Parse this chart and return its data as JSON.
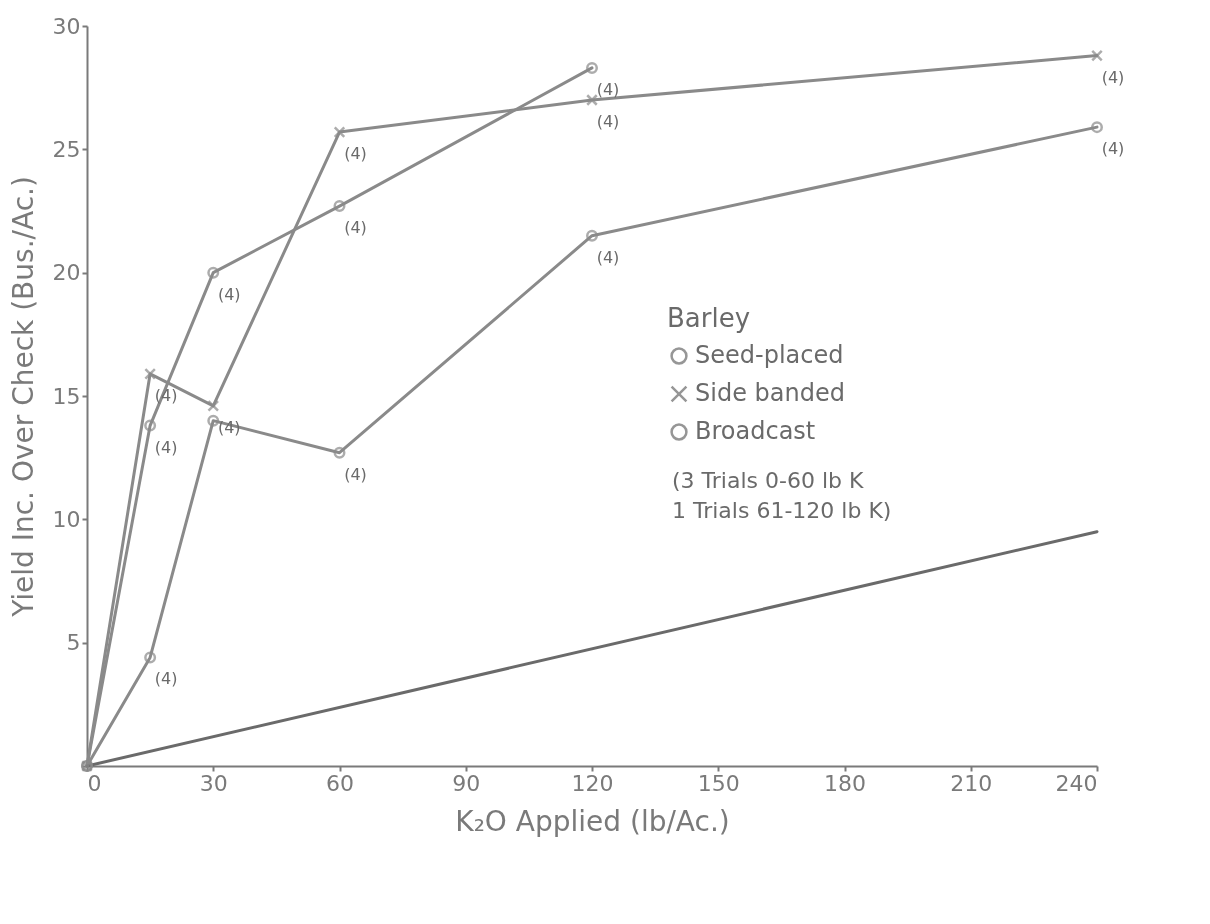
{
  "chart_data": {
    "type": "line",
    "xlabel": "K₂O Applied (lb/Ac.)",
    "ylabel": "Yield Inc. Over Check (Bus./Ac.)",
    "legend_title": "Barley",
    "legend": "right",
    "grid": false,
    "line_style": "solid",
    "xlim": [
      0,
      240
    ],
    "xticks": [
      0,
      30,
      60,
      90,
      120,
      150,
      180,
      210,
      240
    ],
    "ylim": [
      0,
      30
    ],
    "yticks": [
      {
        "value": 0,
        "label": null
      },
      5,
      10,
      15,
      20,
      25,
      30
    ],
    "annotations": [
      "(3 Trials 0-60 lb K",
      " 1 Trials 61-120 lb K)",
      {
        "text": "(4)",
        "x": 15,
        "y": 13.8
      },
      {
        "text": "(4)",
        "x": 30,
        "y": 20.0
      },
      {
        "text": "(4)",
        "x": 60,
        "y": 22.7
      },
      {
        "text": "(4)",
        "x": 120,
        "y": 28.3
      },
      {
        "text": "(4)",
        "x": 15,
        "y": 15.9
      },
      {
        "text": "(4)",
        "x": 30,
        "y": 14.6
      },
      {
        "text": "(4)",
        "x": 60,
        "y": 25.7
      },
      {
        "text": "(4)",
        "x": 120,
        "y": 27.0
      },
      {
        "text": "(4)",
        "x": 240,
        "y": 28.8
      },
      {
        "text": "(4)",
        "x": 15,
        "y": 4.4
      },
      {
        "text": "(4)",
        "x": 60,
        "y": 12.7
      },
      {
        "text": "(4)",
        "x": 120,
        "y": 21.5
      },
      {
        "text": "(4)",
        "x": 240,
        "y": 25.9
      }
    ],
    "series": [
      {
        "name": "Seed-placed",
        "color": "#8a8a8a",
        "marker": "circle",
        "x": [
          0,
          15,
          30,
          60,
          120
        ],
        "values": [
          0,
          13.8,
          20.0,
          22.7,
          28.3
        ]
      },
      {
        "name": "Side banded",
        "color": "#8a8a8a",
        "marker": "cross",
        "x": [
          0,
          15,
          30,
          60,
          120,
          240
        ],
        "values": [
          0,
          15.9,
          14.6,
          25.7,
          27.0,
          28.8
        ]
      },
      {
        "name": "Broadcast",
        "color": "#8a8a8a",
        "marker": "circle",
        "x": [
          0,
          15,
          30,
          60,
          120,
          240
        ],
        "values": [
          0,
          4.4,
          14.0,
          12.7,
          21.5,
          25.9
        ]
      },
      {
        "color": "#6a6a6a",
        "marker": "none",
        "x": [
          0,
          240
        ],
        "values": [
          0,
          9.5
        ]
      }
    ]
  }
}
